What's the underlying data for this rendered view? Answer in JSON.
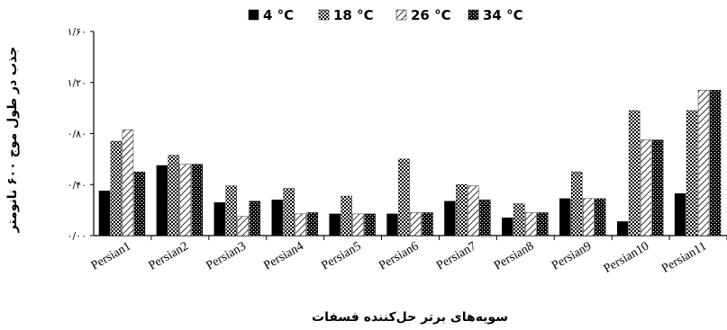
{
  "chart_data": {
    "type": "bar",
    "categories": [
      "Persian1",
      "Persian2",
      "Persian3",
      "Persian4",
      "Persian5",
      "Persian6",
      "Persian7",
      "Persian8",
      "Persian9",
      "Persian10",
      "Persian11"
    ],
    "series": [
      {
        "name": "4 °C",
        "pattern": "solid",
        "values": [
          0.35,
          0.55,
          0.26,
          0.28,
          0.17,
          0.17,
          0.27,
          0.14,
          0.29,
          0.11,
          0.33
        ]
      },
      {
        "name": "18 °C",
        "pattern": "checker",
        "values": [
          0.74,
          0.63,
          0.39,
          0.37,
          0.31,
          0.6,
          0.4,
          0.25,
          0.5,
          0.98,
          0.98
        ]
      },
      {
        "name": "26 °C",
        "pattern": "diagonal",
        "values": [
          0.83,
          0.56,
          0.15,
          0.17,
          0.17,
          0.18,
          0.39,
          0.18,
          0.29,
          0.75,
          1.14
        ]
      },
      {
        "name": "34 °C",
        "pattern": "dots",
        "values": [
          0.5,
          0.56,
          0.27,
          0.18,
          0.17,
          0.18,
          0.28,
          0.18,
          0.29,
          0.75,
          1.14
        ]
      }
    ],
    "series_order_in_group": [
      "4 °C",
      "18 °C",
      "26 °C",
      "34 °C"
    ],
    "yticks": [
      "۰/۰۰",
      "۰/۴۰",
      "۰/۸۰",
      "۱/۲۰",
      "۱/۶۰"
    ],
    "ytick_values": [
      0,
      0.4,
      0.8,
      1.2,
      1.6
    ],
    "ylim": [
      0,
      1.6
    ],
    "ylabel": "جذب در طول موج ۶۰۰ نانومتر",
    "xlabel": "سویه‌های برتر حل‌کننده فسفات",
    "legend_position": "top-center",
    "colors": {
      "bar": "#000000",
      "background": "#ffffff"
    }
  }
}
